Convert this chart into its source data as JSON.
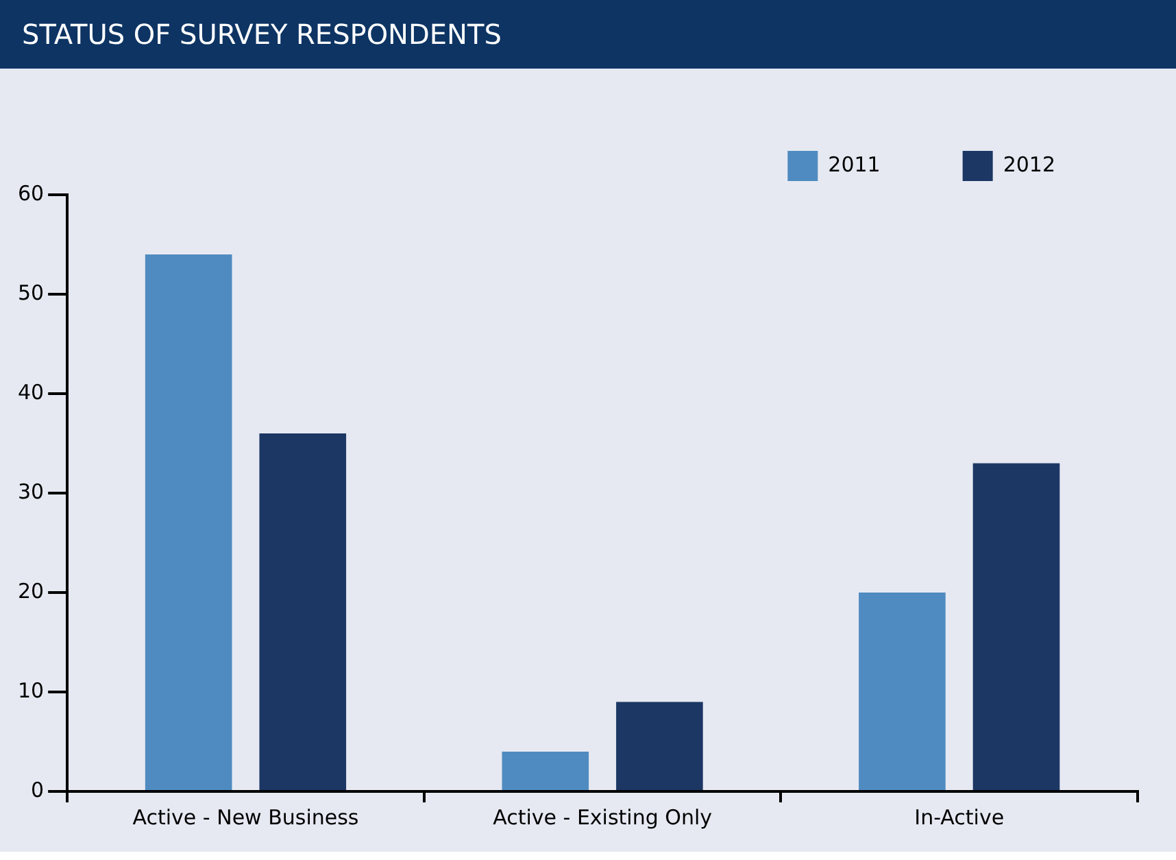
{
  "chart_data": {
    "type": "bar",
    "title": "STATUS OF SURVEY RESPONDENTS",
    "categories": [
      "Active - New Business",
      "Active - Existing Only",
      "In-Active"
    ],
    "series": [
      {
        "name": "2011",
        "color": "#4f8bc0",
        "values": [
          54,
          4,
          20
        ]
      },
      {
        "name": "2012",
        "color": "#1c3764",
        "values": [
          36,
          9,
          33
        ]
      }
    ],
    "ylim": [
      0,
      60
    ],
    "yticks": [
      0,
      10,
      20,
      30,
      40,
      50,
      60
    ],
    "grid": false,
    "legend": "top right"
  }
}
